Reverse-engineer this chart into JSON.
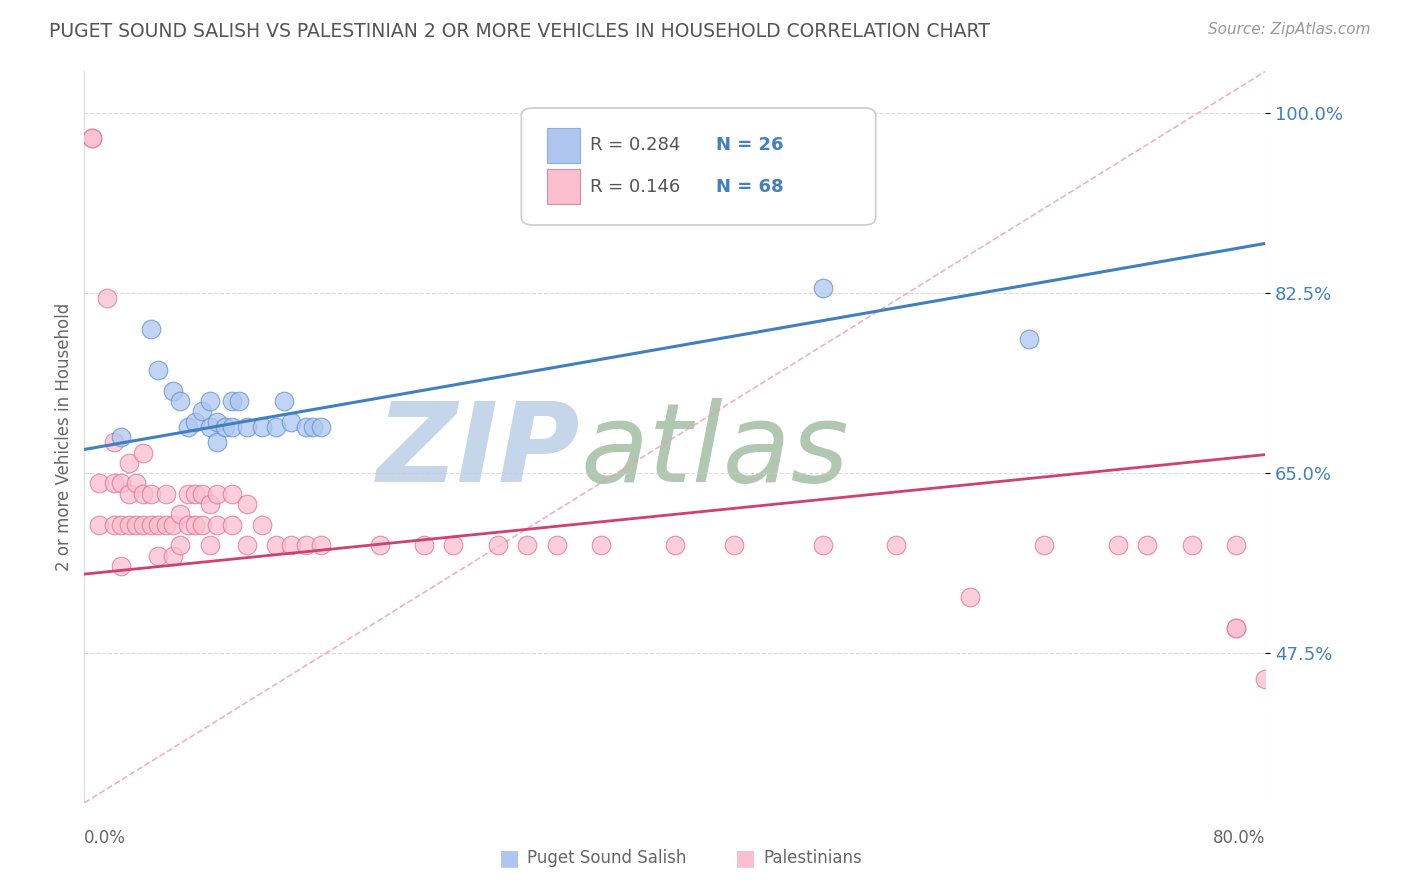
{
  "title": "PUGET SOUND SALISH VS PALESTINIAN 2 OR MORE VEHICLES IN HOUSEHOLD CORRELATION CHART",
  "source": "Source: ZipAtlas.com",
  "xlabel_bottom_left": "0.0%",
  "xlabel_bottom_right": "80.0%",
  "ylabel": "2 or more Vehicles in Household",
  "ytick_labels": [
    "47.5%",
    "65.0%",
    "82.5%",
    "100.0%"
  ],
  "ytick_values": [
    0.475,
    0.65,
    0.825,
    1.0
  ],
  "xlim": [
    0.0,
    0.8
  ],
  "ylim": [
    0.33,
    1.04
  ],
  "legend_blue_label": "R = 0.284",
  "legend_blue_N": "N = 26",
  "legend_pink_label": "R = 0.146",
  "legend_pink_N": "N = 68",
  "legend_bottom_blue": "Puget Sound Salish",
  "legend_bottom_pink": "Palestinians",
  "blue_fill_color": "#aec6f0",
  "blue_edge_color": "#5b8fce",
  "pink_fill_color": "#f9bfcf",
  "pink_edge_color": "#e07090",
  "blue_R": 0.284,
  "blue_N": 26,
  "pink_R": 0.146,
  "pink_N": 68,
  "blue_scatter_x": [
    0.025,
    0.045,
    0.05,
    0.06,
    0.065,
    0.07,
    0.075,
    0.08,
    0.085,
    0.085,
    0.09,
    0.09,
    0.095,
    0.1,
    0.1,
    0.105,
    0.11,
    0.12,
    0.13,
    0.135,
    0.14,
    0.15,
    0.155,
    0.16,
    0.5,
    0.64
  ],
  "blue_scatter_y": [
    0.685,
    0.79,
    0.75,
    0.73,
    0.72,
    0.695,
    0.7,
    0.71,
    0.695,
    0.72,
    0.68,
    0.7,
    0.695,
    0.695,
    0.72,
    0.72,
    0.695,
    0.695,
    0.695,
    0.72,
    0.7,
    0.695,
    0.695,
    0.695,
    0.83,
    0.78
  ],
  "pink_scatter_x": [
    0.005,
    0.005,
    0.01,
    0.01,
    0.015,
    0.02,
    0.02,
    0.02,
    0.025,
    0.025,
    0.025,
    0.03,
    0.03,
    0.03,
    0.035,
    0.035,
    0.04,
    0.04,
    0.04,
    0.045,
    0.045,
    0.05,
    0.05,
    0.055,
    0.055,
    0.06,
    0.06,
    0.065,
    0.065,
    0.07,
    0.07,
    0.075,
    0.075,
    0.08,
    0.08,
    0.085,
    0.085,
    0.09,
    0.09,
    0.1,
    0.1,
    0.11,
    0.11,
    0.12,
    0.13,
    0.14,
    0.15,
    0.16,
    0.2,
    0.23,
    0.25,
    0.28,
    0.3,
    0.32,
    0.35,
    0.4,
    0.44,
    0.5,
    0.55,
    0.6,
    0.65,
    0.7,
    0.72,
    0.75,
    0.78,
    0.78,
    0.78,
    0.8
  ],
  "pink_scatter_y": [
    0.975,
    0.975,
    0.6,
    0.64,
    0.82,
    0.6,
    0.64,
    0.68,
    0.56,
    0.6,
    0.64,
    0.6,
    0.63,
    0.66,
    0.6,
    0.64,
    0.6,
    0.63,
    0.67,
    0.6,
    0.63,
    0.57,
    0.6,
    0.6,
    0.63,
    0.57,
    0.6,
    0.58,
    0.61,
    0.6,
    0.63,
    0.6,
    0.63,
    0.6,
    0.63,
    0.58,
    0.62,
    0.6,
    0.63,
    0.6,
    0.63,
    0.58,
    0.62,
    0.6,
    0.58,
    0.58,
    0.58,
    0.58,
    0.58,
    0.58,
    0.58,
    0.58,
    0.58,
    0.58,
    0.58,
    0.58,
    0.58,
    0.58,
    0.58,
    0.53,
    0.58,
    0.58,
    0.58,
    0.58,
    0.58,
    0.5,
    0.5,
    0.45
  ],
  "blue_line_x": [
    0.0,
    0.8
  ],
  "blue_line_y": [
    0.673,
    0.873
  ],
  "pink_line_x": [
    0.0,
    0.8
  ],
  "pink_line_y": [
    0.552,
    0.668
  ],
  "diag_line_x": [
    0.0,
    0.8
  ],
  "diag_line_y": [
    0.33,
    1.04
  ],
  "diag_line_color": "#e8a0b0",
  "watermark_text": "ZIP",
  "watermark_text2": "atlas",
  "watermark_color_zip": "#c5d5ea",
  "watermark_color_atlas": "#b0c8b0",
  "background_color": "#ffffff",
  "title_color": "#555555",
  "grid_color": "#cccccc",
  "blue_line_color": "#4080c0",
  "pink_line_color": "#d04070",
  "legend_box_color": "#aec6f0",
  "legend_pink_box_color": "#f9bfcf"
}
